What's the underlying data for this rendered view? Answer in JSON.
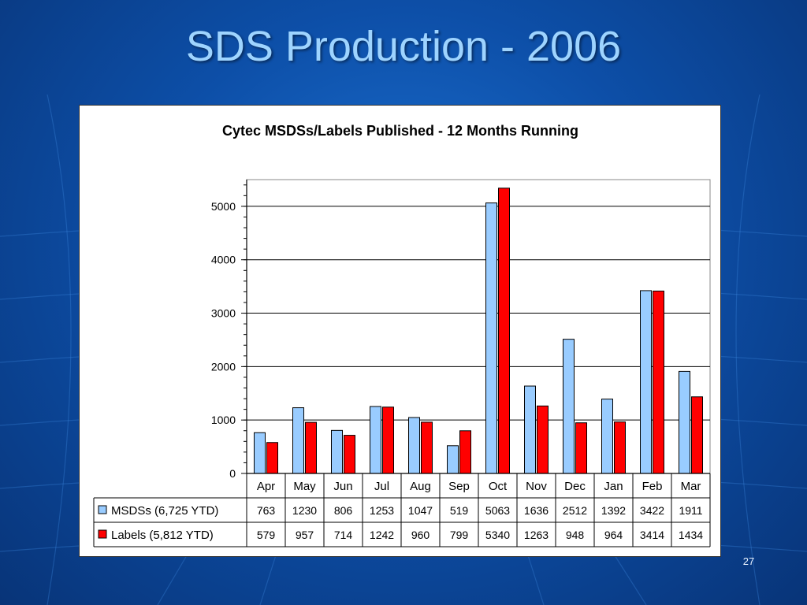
{
  "slide": {
    "title": "SDS Production - 2006",
    "number": "27"
  },
  "colors": {
    "msdss": "#99ccff",
    "labels": "#ff0000",
    "title_text": "#9ed4ff"
  },
  "chart_data": {
    "type": "bar",
    "title": "Cytec MSDSs/Labels Published - 12 Months Running",
    "xlabel": "",
    "ylabel": "",
    "ylim": [
      0,
      5500
    ],
    "yticks": [
      0,
      1000,
      2000,
      3000,
      4000,
      5000
    ],
    "grid": true,
    "legend": "data-table-left",
    "categories": [
      "Apr",
      "May",
      "Jun",
      "Jul",
      "Aug",
      "Sep",
      "Oct",
      "Nov",
      "Dec",
      "Jan",
      "Feb",
      "Mar"
    ],
    "series": [
      {
        "name": "MSDSs (6,725 YTD)",
        "color": "#99ccff",
        "values": [
          763,
          1230,
          806,
          1253,
          1047,
          519,
          5063,
          1636,
          2512,
          1392,
          3422,
          1911
        ]
      },
      {
        "name": "Labels (5,812 YTD)",
        "color": "#ff0000",
        "values": [
          579,
          957,
          714,
          1242,
          960,
          799,
          5340,
          1263,
          948,
          964,
          3414,
          1434
        ]
      }
    ]
  }
}
